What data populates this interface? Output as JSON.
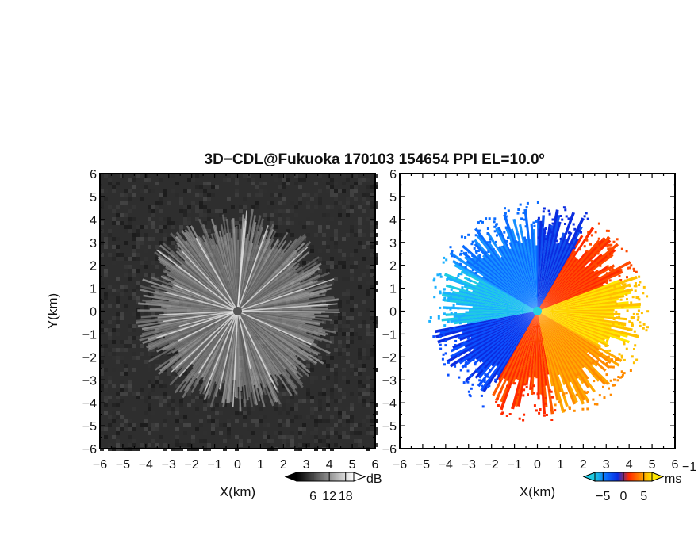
{
  "figure": {
    "title": "3D−CDL@Fukuoka 170103 154654 PPI EL=10.0º"
  },
  "chart_data": [
    {
      "type": "heatmap",
      "panel": "left",
      "quantity": "reflectivity / SNR (grayscale)",
      "xlabel": "X(km)",
      "ylabel": "Y(km)",
      "xlim": [
        -6,
        6
      ],
      "ylim": [
        -6,
        6
      ],
      "x_ticks": [
        "−6",
        "−5",
        "−4",
        "−3",
        "−2",
        "−1",
        "0",
        "1",
        "2",
        "3",
        "4",
        "5",
        "6"
      ],
      "y_ticks": [
        "6",
        "5",
        "4",
        "3",
        "2",
        "1",
        "0",
        "−1",
        "−2",
        "−3",
        "−4",
        "−5",
        "−6"
      ],
      "max_range_km": 4.6,
      "colorbar": {
        "unit": "dB",
        "ticks": [
          "6",
          "12",
          "18"
        ],
        "tick_values": [
          6,
          12,
          18
        ],
        "range": [
          0,
          21
        ],
        "colors": [
          "#000000",
          "#ffffff"
        ]
      }
    },
    {
      "type": "heatmap",
      "panel": "right",
      "quantity": "Doppler radial velocity",
      "xlabel": "X(km)",
      "ylabel": "",
      "xlim": [
        -6,
        6
      ],
      "ylim": [
        -6,
        6
      ],
      "x_ticks": [
        "−6",
        "−5",
        "−4",
        "−3",
        "−2",
        "−1",
        "0",
        "1",
        "2",
        "3",
        "4",
        "5",
        "6"
      ],
      "y_ticks": [
        "6",
        "5",
        "4",
        "3",
        "2",
        "1",
        "0",
        "−1",
        "−2",
        "−3",
        "−4",
        "−5",
        "−6"
      ],
      "max_range_km": 4.6,
      "colorbar": {
        "unit": "ms",
        "unit_exponent": "−1",
        "ticks": [
          "−5",
          "0",
          "5"
        ],
        "tick_values": [
          -5,
          0,
          5
        ],
        "range": [
          -7,
          7
        ],
        "colors": [
          "#1ecbe1",
          "#0a6cff",
          "#0a2ce0",
          "#ff2a00",
          "#ff8a00",
          "#ffe600"
        ]
      }
    }
  ]
}
